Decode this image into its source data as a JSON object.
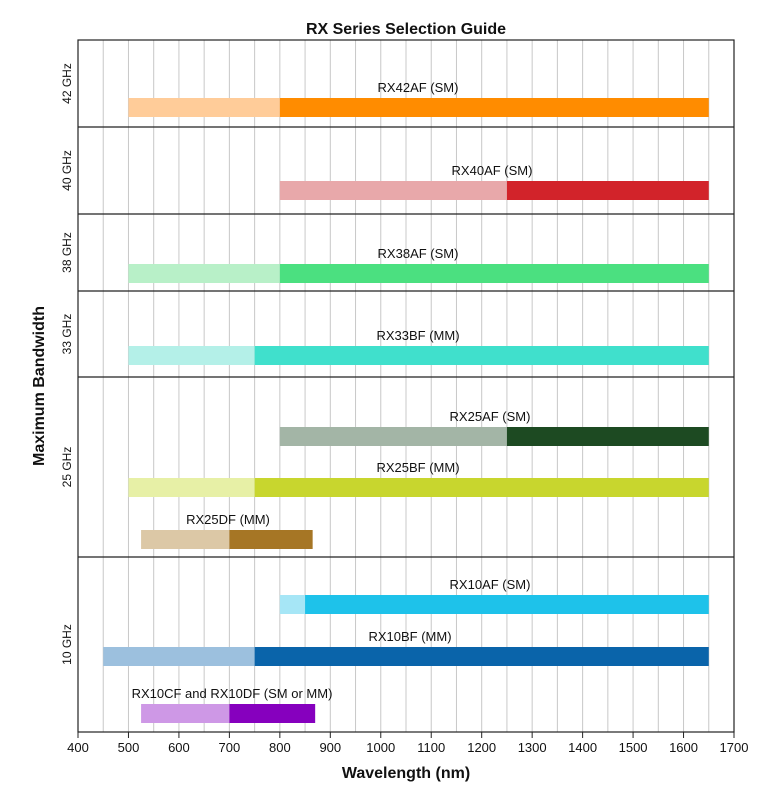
{
  "chart_data": {
    "type": "bar",
    "title": "RX Series Selection Guide",
    "xlabel": "Wavelength (nm)",
    "ylabel": "Maximum Bandwidth",
    "xlim": [
      400,
      1700
    ],
    "xticks": [
      400,
      500,
      600,
      700,
      800,
      900,
      1000,
      1100,
      1200,
      1300,
      1400,
      1500,
      1600,
      1700
    ],
    "grid": true,
    "groups": [
      {
        "label": "42 GHz",
        "products": [
          {
            "name": "RX42AF (SM)",
            "light": [
              500,
              800
            ],
            "full": [
              800,
              1650
            ],
            "light_color": "#FFCC99",
            "full_color": "#FF8C00"
          }
        ]
      },
      {
        "label": "40 GHz",
        "products": [
          {
            "name": "RX40AF (SM)",
            "light": [
              800,
              1250
            ],
            "full": [
              1250,
              1650
            ],
            "light_color": "#E8A8AA",
            "full_color": "#D2232A"
          }
        ]
      },
      {
        "label": "38 GHz",
        "products": [
          {
            "name": "RX38AF (SM)",
            "light": [
              500,
              800
            ],
            "full": [
              800,
              1650
            ],
            "light_color": "#B8F0C8",
            "full_color": "#4BE080"
          }
        ]
      },
      {
        "label": "33 GHz",
        "products": [
          {
            "name": "RX33BF (MM)",
            "light": [
              500,
              750
            ],
            "full": [
              750,
              1650
            ],
            "light_color": "#B4F0E8",
            "full_color": "#40E0CC"
          }
        ]
      },
      {
        "label": "25 GHz",
        "products": [
          {
            "name": "RX25AF (SM)",
            "light": [
              800,
              1250
            ],
            "full": [
              1250,
              1650
            ],
            "light_color": "#A3B5A6",
            "full_color": "#1D4A22"
          },
          {
            "name": "RX25BF (MM)",
            "light": [
              500,
              750
            ],
            "full": [
              750,
              1650
            ],
            "light_color": "#E7F0A6",
            "full_color": "#C8D62E"
          },
          {
            "name": "RX25DF (MM)",
            "light": [
              525,
              700
            ],
            "full": [
              700,
              865
            ],
            "light_color": "#DCC8A6",
            "full_color": "#A67625"
          }
        ]
      },
      {
        "label": "10 GHz",
        "products": [
          {
            "name": "RX10AF (SM)",
            "light": [
              800,
              850
            ],
            "full": [
              850,
              1650
            ],
            "light_color": "#A6E6F6",
            "full_color": "#1EC2EA"
          },
          {
            "name": "RX10BF (MM)",
            "light": [
              450,
              750
            ],
            "full": [
              750,
              1650
            ],
            "light_color": "#9CC0DE",
            "full_color": "#0A64AA"
          },
          {
            "name": "RX10CF and RX10DF (SM or MM)",
            "light": [
              525,
              700
            ],
            "full": [
              700,
              870
            ],
            "light_color": "#CE98E6",
            "full_color": "#8600BE"
          }
        ]
      }
    ]
  }
}
